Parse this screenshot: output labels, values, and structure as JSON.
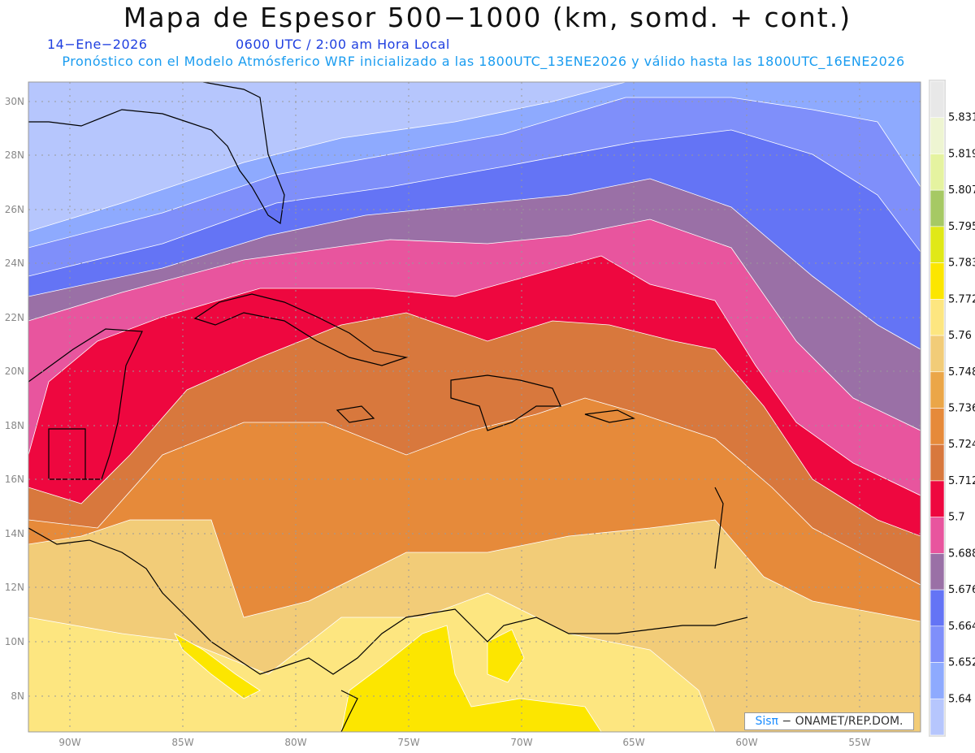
{
  "header": {
    "title": "Mapa de Espesor 500−1000 (km, somd. + cont.)",
    "date": "14−Ene−2026",
    "time": "0600 UTC / 2:00 am Hora Local",
    "description": "Pronóstico con el Modelo Atmósferico WRF inicializado a las 1800UTC_13ENE2026 y válido hasta las  1800UTC_16ENE2026"
  },
  "axes": {
    "lat_ticks": [
      "30N",
      "28N",
      "26N",
      "24N",
      "22N",
      "20N",
      "18N",
      "16N",
      "14N",
      "12N",
      "10N",
      "8N"
    ],
    "lon_ticks": [
      "90W",
      "85W",
      "80W",
      "75W",
      "70W",
      "65W",
      "60W",
      "55W"
    ]
  },
  "colorbar": {
    "colors": [
      "#e8e8e8",
      "#eef5d2",
      "#e5f3a0",
      "#a6c964",
      "#e0e817",
      "#fce600",
      "#fde680",
      "#f2cc78",
      "#eba648",
      "#e68a3a",
      "#d8783d",
      "#ee073f",
      "#e8559e",
      "#9a70a6",
      "#6474f5",
      "#7f8ffa",
      "#8eaafe",
      "#b6c6fd"
    ],
    "labels": [
      "5.831",
      "5.819",
      "5.807",
      "5.795",
      "5.783",
      "5.772",
      "5.76",
      "5.748",
      "5.736",
      "5.724",
      "5.712",
      "5.7",
      "5.688",
      "5.676",
      "5.664",
      "5.652",
      "5.64"
    ]
  },
  "credit": {
    "brand": "Sisπ",
    "text": " − ONAMET/REP.DOM."
  }
}
